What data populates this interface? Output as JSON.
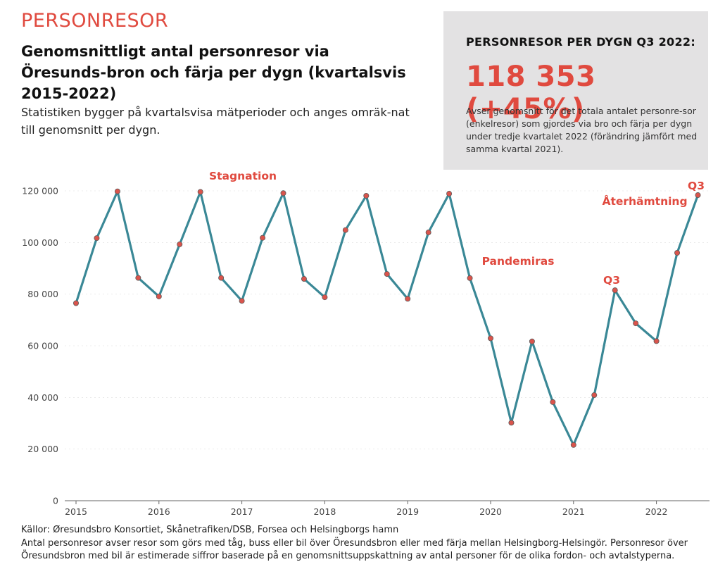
{
  "header": {
    "section_label": "PERSONRESOR",
    "title": "Genomsnittligt antal personresor via Öresunds-bron och färja per dygn (kvartalsvis 2015-2022)",
    "subtitle": "Statistiken bygger på kvartalsvisa mätperioder och anges omräk-nat till genomsnitt per dygn."
  },
  "kpi": {
    "heading": "PERSONRESOR PER DYGN Q3 2022:",
    "value": "118 353 (+45%)",
    "description": "Avser genomsnitt för det totala antalet personre-sor (enkelresor) som gjordes via bro och färja per dygn under tredje kvartalet 2022 (förändring jämfört med samma kvartal 2021)."
  },
  "chart_data": {
    "type": "line",
    "title": "Genomsnittligt antal personresor via Öresunds-bron och färja per dygn (kvartalsvis 2015-2022)",
    "xlabel": "",
    "ylabel": "",
    "ylim": [
      0,
      120000
    ],
    "yticks": [
      0,
      20000,
      40000,
      60000,
      80000,
      100000,
      120000
    ],
    "ytick_labels": [
      "0",
      "20 000",
      "40 000",
      "60 000",
      "80 000",
      "100 000",
      "120 000"
    ],
    "year_labels": [
      "2015",
      "2016",
      "2017",
      "2018",
      "2019",
      "2020",
      "2021",
      "2022"
    ],
    "x": [
      "2015 Q1",
      "2015 Q2",
      "2015 Q3",
      "2015 Q4",
      "2016 Q1",
      "2016 Q2",
      "2016 Q3",
      "2016 Q4",
      "2017 Q1",
      "2017 Q2",
      "2017 Q3",
      "2017 Q4",
      "2018 Q1",
      "2018 Q2",
      "2018 Q3",
      "2018 Q4",
      "2019 Q1",
      "2019 Q2",
      "2019 Q3",
      "2019 Q4",
      "2020 Q1",
      "2020 Q2",
      "2020 Q3",
      "2020 Q4",
      "2021 Q1",
      "2021 Q2",
      "2021 Q3",
      "2021 Q4",
      "2022 Q1",
      "2022 Q2",
      "2022 Q3"
    ],
    "series": [
      {
        "name": "Personresor per dygn",
        "values": [
          76500,
          101700,
          119800,
          86300,
          79100,
          99300,
          119600,
          86300,
          77400,
          101800,
          119100,
          85900,
          78800,
          104800,
          118100,
          87800,
          78200,
          103900,
          118900,
          86200,
          62900,
          30200,
          61700,
          38200,
          21600,
          40900,
          81500,
          68700,
          61800,
          96000,
          118353
        ]
      }
    ],
    "annotations": [
      {
        "text": "Stagnation",
        "x_index": 7.3
      },
      {
        "text": "Pandemiras",
        "x_index": 21.8
      },
      {
        "text": "Q3",
        "x_index": 26
      },
      {
        "text": "Återhämtning",
        "x_index": 28.6
      },
      {
        "text": "Q3",
        "x_index": 30
      }
    ]
  },
  "footer": {
    "sources": "Källor: Øresundsbro Konsortiet, Skånetrafiken/DSB, Forsea och Helsingborgs hamn",
    "note": "Antal personresor avser resor som görs med tåg, buss eller bil över Öresundsbron eller med färja mellan Helsingborg-Helsingör. Personresor över Öresundsbron med bil är estimerade siffror baserade på en genomsnittsuppskattning av antal personer för de olika fordon- och avtalstyperna."
  },
  "colors": {
    "accent": "#e04a3f",
    "line": "#3a8896",
    "marker": "#d9544c",
    "grid": "#dddddd",
    "box": "#e3e2e3"
  }
}
